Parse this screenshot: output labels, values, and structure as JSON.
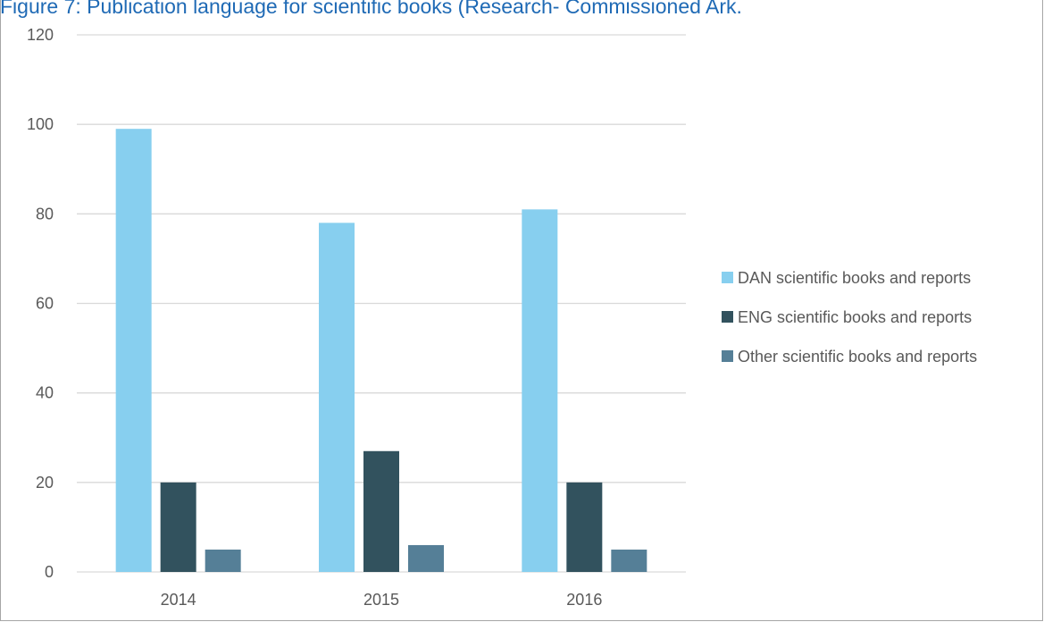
{
  "title": "Figure 7: Publication language for scientific books (Research- Commissioned Ark.",
  "chart_data": {
    "type": "bar",
    "categories": [
      "2014",
      "2015",
      "2016"
    ],
    "series": [
      {
        "name": "DAN scientific books and reports",
        "values": [
          99,
          78,
          81
        ],
        "color": "#87cfef"
      },
      {
        "name": "ENG scientific books and reports",
        "values": [
          20,
          27,
          20
        ],
        "color": "#32525e"
      },
      {
        "name": "Other scientific books and reports",
        "values": [
          5,
          6,
          5
        ],
        "color": "#557f97"
      }
    ],
    "y_ticks": [
      "0",
      "20",
      "40",
      "60",
      "80",
      "100",
      "120"
    ],
    "ylim": [
      0,
      120
    ],
    "grid": true,
    "legend_position": "right"
  }
}
